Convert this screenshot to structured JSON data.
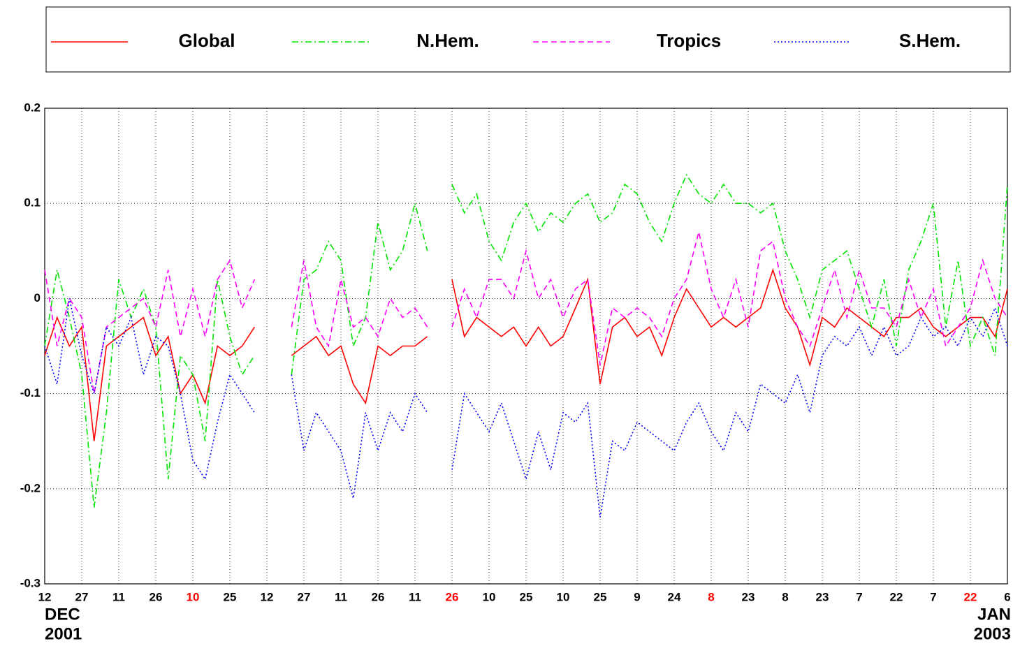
{
  "chart_data": {
    "type": "line",
    "xlim": [
      0,
      390
    ],
    "ylim": [
      -0.3,
      0.2
    ],
    "yticks": [
      0.2,
      0.1,
      0,
      -0.1,
      -0.2,
      -0.3
    ],
    "xticks": [
      {
        "value": 0,
        "label": "12"
      },
      {
        "value": 15,
        "label": "27"
      },
      {
        "value": 30,
        "label": "11"
      },
      {
        "value": 45,
        "label": "26"
      },
      {
        "value": 60,
        "label": "10",
        "color": "#ff0000"
      },
      {
        "value": 75,
        "label": "25"
      },
      {
        "value": 90,
        "label": "12"
      },
      {
        "value": 105,
        "label": "27"
      },
      {
        "value": 120,
        "label": "11"
      },
      {
        "value": 135,
        "label": "26"
      },
      {
        "value": 150,
        "label": "11"
      },
      {
        "value": 165,
        "label": "26",
        "color": "#ff0000"
      },
      {
        "value": 180,
        "label": "10"
      },
      {
        "value": 195,
        "label": "25"
      },
      {
        "value": 210,
        "label": "10"
      },
      {
        "value": 225,
        "label": "25"
      },
      {
        "value": 240,
        "label": "9"
      },
      {
        "value": 255,
        "label": "24"
      },
      {
        "value": 270,
        "label": "8",
        "color": "#ff0000"
      },
      {
        "value": 285,
        "label": "23"
      },
      {
        "value": 300,
        "label": "8"
      },
      {
        "value": 315,
        "label": "23"
      },
      {
        "value": 330,
        "label": "7"
      },
      {
        "value": 345,
        "label": "22"
      },
      {
        "value": 360,
        "label": "7"
      },
      {
        "value": 375,
        "label": "22",
        "color": "#ff0000"
      },
      {
        "value": 390,
        "label": "6"
      }
    ],
    "x_period_labels": [
      {
        "value": 0,
        "month": "DEC",
        "year": "2001"
      },
      {
        "value": 390,
        "month": "JAN",
        "year": "2003"
      }
    ],
    "grid": true,
    "x": [
      0,
      5,
      10,
      15,
      20,
      25,
      30,
      35,
      40,
      45,
      50,
      55,
      60,
      65,
      70,
      75,
      80,
      85,
      90,
      95,
      100,
      105,
      110,
      115,
      120,
      125,
      130,
      135,
      140,
      145,
      150,
      155,
      160,
      165,
      170,
      175,
      180,
      185,
      190,
      195,
      200,
      205,
      210,
      215,
      220,
      225,
      230,
      235,
      240,
      245,
      250,
      255,
      260,
      265,
      270,
      275,
      280,
      285,
      290,
      295,
      300,
      305,
      310,
      315,
      320,
      325,
      330,
      335,
      340,
      345,
      350,
      355,
      360,
      365,
      370,
      375,
      380,
      385,
      390
    ],
    "series": [
      {
        "name": "Global",
        "color": "#ff0000",
        "dash": "solid",
        "values": [
          -0.06,
          -0.02,
          -0.05,
          -0.03,
          -0.15,
          -0.05,
          -0.04,
          -0.03,
          -0.02,
          -0.06,
          -0.04,
          -0.1,
          -0.08,
          -0.11,
          -0.05,
          -0.06,
          -0.05,
          -0.03,
          null,
          null,
          -0.06,
          -0.05,
          -0.04,
          -0.06,
          -0.05,
          -0.09,
          -0.11,
          -0.05,
          -0.06,
          -0.05,
          -0.05,
          -0.04,
          null,
          0.02,
          -0.04,
          -0.02,
          -0.03,
          -0.04,
          -0.03,
          -0.05,
          -0.03,
          -0.05,
          -0.04,
          -0.01,
          0.02,
          -0.09,
          -0.03,
          -0.02,
          -0.04,
          -0.03,
          -0.06,
          -0.02,
          0.01,
          -0.01,
          -0.03,
          -0.02,
          -0.03,
          -0.02,
          -0.01,
          0.03,
          -0.01,
          -0.03,
          -0.07,
          -0.02,
          -0.03,
          -0.01,
          -0.02,
          -0.03,
          -0.04,
          -0.02,
          -0.02,
          -0.01,
          -0.03,
          -0.04,
          -0.03,
          -0.02,
          -0.02,
          -0.04,
          0.01
        ]
      },
      {
        "name": "N.Hem.",
        "color": "#00e600",
        "dash": "dashdot",
        "values": [
          -0.05,
          0.03,
          -0.02,
          -0.08,
          -0.22,
          -0.12,
          0.02,
          -0.02,
          0.01,
          -0.03,
          -0.19,
          -0.06,
          -0.08,
          -0.15,
          0.02,
          -0.04,
          -0.08,
          -0.06,
          null,
          null,
          -0.08,
          0.02,
          0.03,
          0.06,
          0.04,
          -0.05,
          -0.02,
          0.08,
          0.03,
          0.05,
          0.1,
          0.05,
          null,
          0.12,
          0.09,
          0.11,
          0.06,
          0.04,
          0.08,
          0.1,
          0.07,
          0.09,
          0.08,
          0.1,
          0.11,
          0.08,
          0.09,
          0.12,
          0.11,
          0.08,
          0.06,
          0.1,
          0.13,
          0.11,
          0.1,
          0.12,
          0.1,
          0.1,
          0.09,
          0.1,
          0.05,
          0.02,
          -0.02,
          0.03,
          0.04,
          0.05,
          0.01,
          -0.03,
          0.02,
          -0.05,
          0.03,
          0.06,
          0.1,
          -0.03,
          0.04,
          -0.05,
          -0.02,
          -0.06,
          0.12
        ]
      },
      {
        "name": "Tropics",
        "color": "#ff00ff",
        "dash": "dashed",
        "values": [
          0.03,
          -0.05,
          0.0,
          -0.02,
          -0.1,
          -0.03,
          -0.02,
          -0.01,
          0.0,
          -0.03,
          0.03,
          -0.04,
          0.01,
          -0.04,
          0.02,
          0.04,
          -0.01,
          0.02,
          null,
          null,
          -0.03,
          0.04,
          -0.03,
          -0.05,
          0.02,
          -0.03,
          -0.02,
          -0.04,
          0.0,
          -0.02,
          -0.01,
          -0.03,
          null,
          -0.03,
          0.01,
          -0.02,
          0.02,
          0.02,
          0.0,
          0.05,
          0.0,
          0.02,
          -0.02,
          0.01,
          0.02,
          -0.07,
          -0.01,
          -0.02,
          -0.01,
          -0.02,
          -0.04,
          0.0,
          0.02,
          0.07,
          0.01,
          -0.02,
          0.02,
          -0.03,
          0.05,
          0.06,
          0.0,
          -0.03,
          -0.05,
          -0.01,
          0.03,
          -0.02,
          0.03,
          -0.01,
          -0.01,
          -0.03,
          0.02,
          -0.02,
          0.01,
          -0.05,
          -0.03,
          -0.01,
          0.04,
          0.0,
          -0.02
        ]
      },
      {
        "name": "S.Hem.",
        "color": "#0000ff",
        "dash": "dotted",
        "values": [
          -0.05,
          -0.09,
          0.0,
          -0.06,
          -0.1,
          -0.03,
          -0.05,
          -0.02,
          -0.08,
          -0.04,
          -0.05,
          -0.1,
          -0.17,
          -0.19,
          -0.13,
          -0.08,
          -0.1,
          -0.12,
          null,
          null,
          -0.08,
          -0.16,
          -0.12,
          -0.14,
          -0.16,
          -0.21,
          -0.12,
          -0.16,
          -0.12,
          -0.14,
          -0.1,
          -0.12,
          null,
          -0.18,
          -0.1,
          -0.12,
          -0.14,
          -0.11,
          -0.15,
          -0.19,
          -0.14,
          -0.18,
          -0.12,
          -0.13,
          -0.11,
          -0.23,
          -0.15,
          -0.16,
          -0.13,
          -0.14,
          -0.15,
          -0.16,
          -0.13,
          -0.11,
          -0.14,
          -0.16,
          -0.12,
          -0.14,
          -0.09,
          -0.1,
          -0.11,
          -0.08,
          -0.12,
          -0.06,
          -0.04,
          -0.05,
          -0.03,
          -0.06,
          -0.03,
          -0.06,
          -0.05,
          -0.02,
          -0.04,
          -0.03,
          -0.05,
          -0.02,
          -0.04,
          -0.01,
          -0.05
        ]
      }
    ]
  }
}
